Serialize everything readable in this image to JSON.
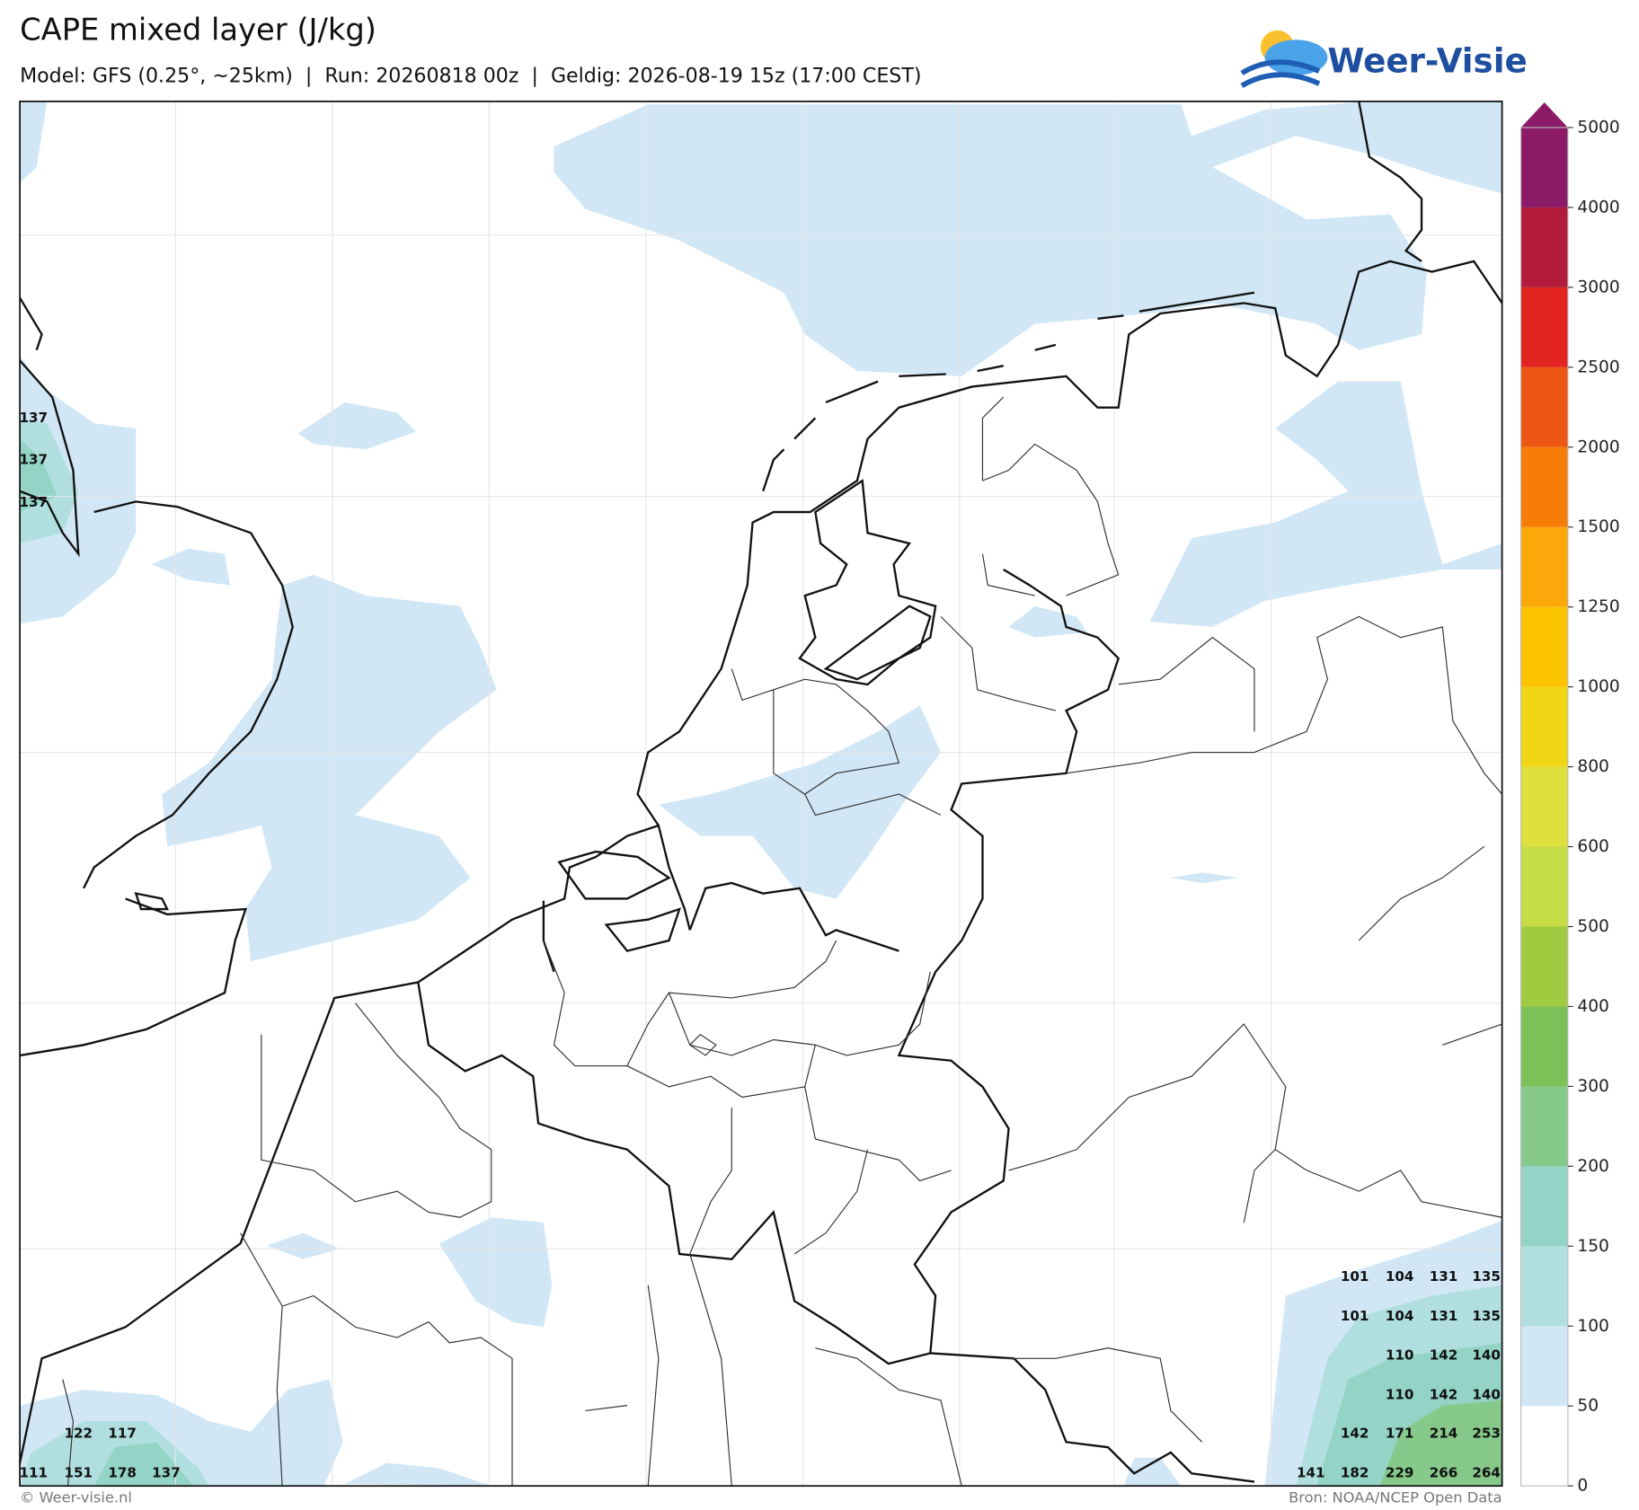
{
  "header": {
    "title": "CAPE mixed layer (J/kg)",
    "subtitle": "Model: GFS (0.25°, ~25km)  |  Run: 20260818 00z  |  Geldig: 2026-08-19 15z (17:00 CEST)",
    "logo": "Weer-Visie"
  },
  "colorbar": {
    "ticks": [
      0,
      50,
      100,
      150,
      200,
      300,
      400,
      500,
      600,
      800,
      1000,
      1250,
      1500,
      2000,
      2500,
      3000,
      4000,
      5000
    ],
    "colors": [
      "#ffffff",
      "#d1e7f5",
      "#b1dfe0",
      "#93d4c6",
      "#86c98b",
      "#7ac257",
      "#9fcb40",
      "#c5dc45",
      "#dee03c",
      "#f2d616",
      "#fcc400",
      "#fca70a",
      "#f77e06",
      "#ee5613",
      "#e1241f",
      "#b31b3a",
      "#8c1b67"
    ]
  },
  "labels": [
    137,
    137,
    137,
    122,
    117,
    111,
    151,
    178,
    137,
    101,
    104,
    131,
    135,
    101,
    104,
    131,
    135,
    110,
    142,
    140,
    110,
    142,
    140,
    142,
    171,
    214,
    253,
    141,
    182,
    229,
    266,
    264
  ],
  "footer": {
    "left": "© Weer-visie.nl",
    "right": "Bron: NOAA/NCEP Open Data"
  }
}
